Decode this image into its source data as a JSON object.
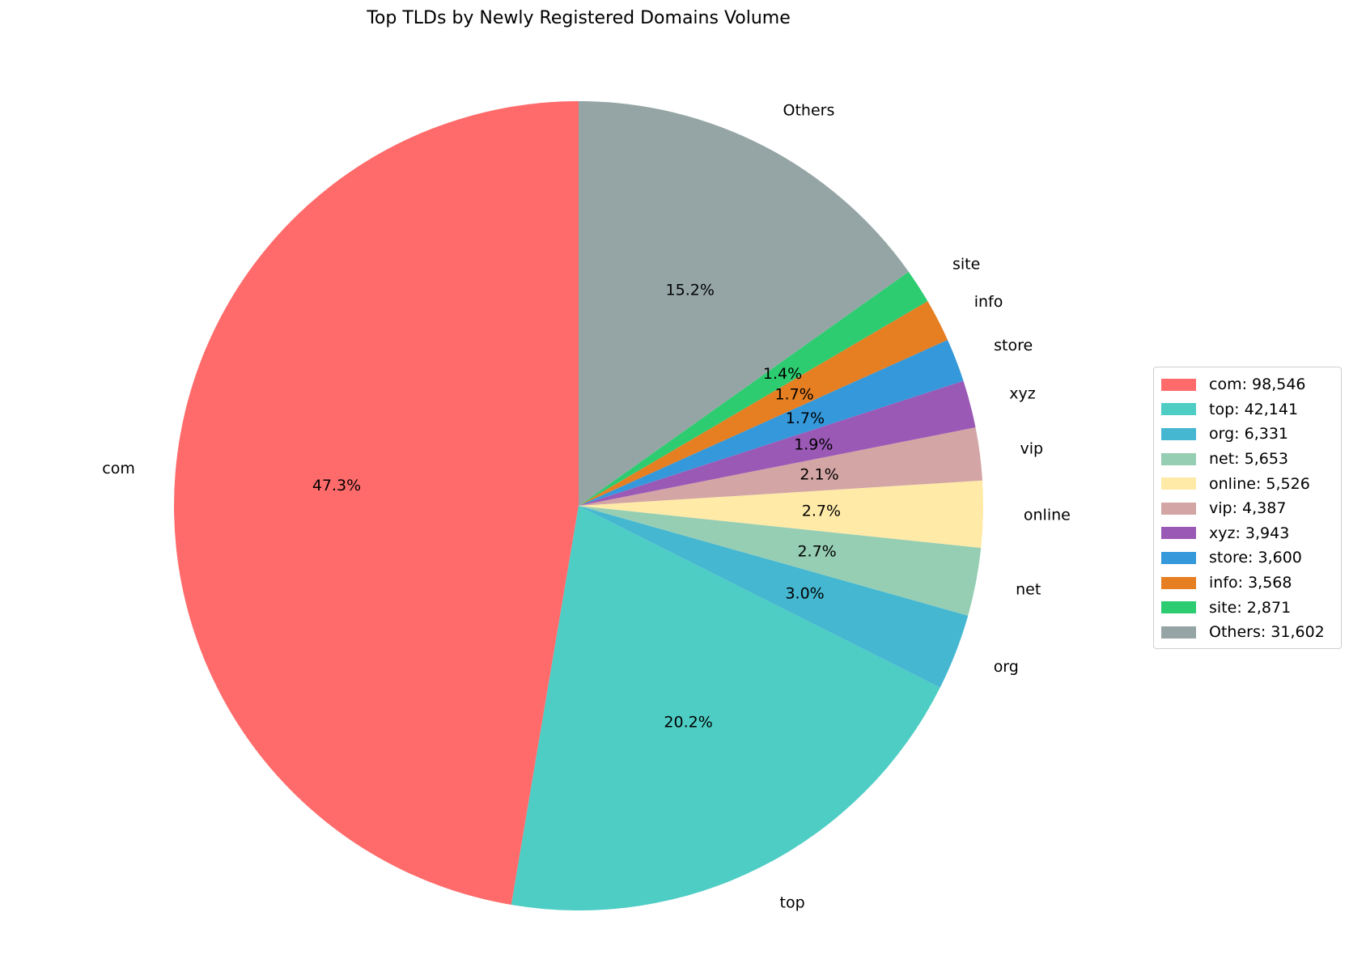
{
  "chart_data": {
    "type": "pie",
    "title": "Top TLDs by Newly Registered Domains Volume",
    "slices": [
      {
        "label": "com",
        "value": 98546,
        "pct_label": "47.3%",
        "legend": "com: 98,546",
        "color": "#FF6B6B"
      },
      {
        "label": "top",
        "value": 42141,
        "pct_label": "20.2%",
        "legend": "top: 42,141",
        "color": "#4ECDC4"
      },
      {
        "label": "org",
        "value": 6331,
        "pct_label": "3.0%",
        "legend": "org: 6,331",
        "color": "#45B7D1"
      },
      {
        "label": "net",
        "value": 5653,
        "pct_label": "2.7%",
        "legend": "net: 5,653",
        "color": "#96CEB4"
      },
      {
        "label": "online",
        "value": 5526,
        "pct_label": "2.7%",
        "legend": "online: 5,526",
        "color": "#FFEAA7"
      },
      {
        "label": "vip",
        "value": 4387,
        "pct_label": "2.1%",
        "legend": "vip: 4,387",
        "color": "#D4A5A5"
      },
      {
        "label": "xyz",
        "value": 3943,
        "pct_label": "1.9%",
        "legend": "xyz: 3,943",
        "color": "#9B59B6"
      },
      {
        "label": "store",
        "value": 3600,
        "pct_label": "1.7%",
        "legend": "store: 3,600",
        "color": "#3498DB"
      },
      {
        "label": "info",
        "value": 3568,
        "pct_label": "1.7%",
        "legend": "info: 3,568",
        "color": "#E67E22"
      },
      {
        "label": "site",
        "value": 2871,
        "pct_label": "1.4%",
        "legend": "site: 2,871",
        "color": "#2ECC71"
      },
      {
        "label": "Others",
        "value": 31602,
        "pct_label": "15.2%",
        "legend": "Others: 31,602",
        "color": "#95A5A6"
      }
    ],
    "start_angle_deg": 90,
    "direction": "counterclockwise",
    "legend_position": "right"
  }
}
